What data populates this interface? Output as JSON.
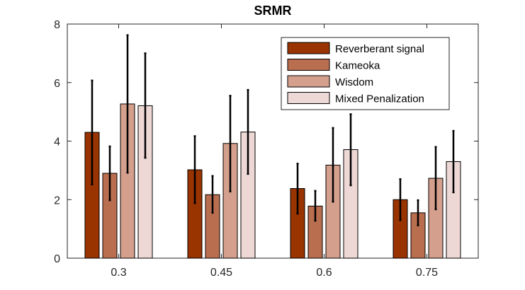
{
  "chart_data": {
    "type": "bar",
    "title": "SRMR",
    "xlabel": "",
    "ylabel": "",
    "ylim": [
      0,
      8
    ],
    "yticks": [
      0,
      2,
      4,
      6,
      8
    ],
    "categories": [
      "0.3",
      "0.45",
      "0.6",
      "0.75"
    ],
    "legend_position": "top-right",
    "error_bars": true,
    "series": [
      {
        "name": "Reverberant signal",
        "color": "#993300",
        "values": [
          4.3,
          3.02,
          2.38,
          2.0
        ],
        "err_low": [
          2.52,
          1.88,
          1.52,
          1.3
        ],
        "err_high": [
          6.07,
          4.17,
          3.23,
          2.7
        ]
      },
      {
        "name": "Kameoka",
        "color": "#b96e4f",
        "values": [
          2.9,
          2.17,
          1.78,
          1.55
        ],
        "err_low": [
          1.98,
          1.55,
          1.28,
          1.12
        ],
        "err_high": [
          3.82,
          2.81,
          2.3,
          1.98
        ]
      },
      {
        "name": "Wisdom",
        "color": "#d4a08d",
        "values": [
          5.27,
          3.92,
          3.18,
          2.73
        ],
        "err_low": [
          2.92,
          2.28,
          1.93,
          1.67
        ],
        "err_high": [
          7.62,
          5.55,
          4.45,
          3.8
        ]
      },
      {
        "name": "Mixed Penalization",
        "color": "#eed8d5",
        "values": [
          5.21,
          4.31,
          3.71,
          3.3
        ],
        "err_low": [
          3.43,
          2.88,
          2.49,
          2.25
        ],
        "err_high": [
          7.0,
          5.75,
          4.92,
          4.35
        ]
      }
    ]
  }
}
